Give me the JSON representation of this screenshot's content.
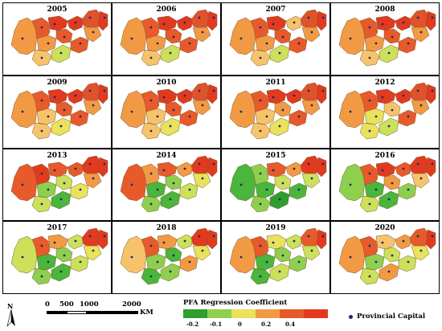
{
  "panels": [
    {
      "year": "2005",
      "scheme": [
        "#f29a43",
        "#e85a2a",
        "#e23a1e",
        "#f29a43",
        "#e85a2a",
        "#e23a1e",
        "#e0522a",
        "#f6c36a",
        "#cce05a",
        "#e85a2a",
        "#e23a1e",
        "#f29a43"
      ]
    },
    {
      "year": "2006",
      "scheme": [
        "#f29a43",
        "#e85a2a",
        "#e23a1e",
        "#f29a43",
        "#e85a2a",
        "#e23a1e",
        "#e0522a",
        "#f6c36a",
        "#cce05a",
        "#e85a2a",
        "#e23a1e",
        "#f29a43"
      ]
    },
    {
      "year": "2007",
      "scheme": [
        "#f29a43",
        "#e85a2a",
        "#e23a1e",
        "#f29a43",
        "#e85a2a",
        "#f6c36a",
        "#e0522a",
        "#f6c36a",
        "#cce05a",
        "#e85a2a",
        "#e23a1e",
        "#f29a43"
      ]
    },
    {
      "year": "2008",
      "scheme": [
        "#f29a43",
        "#e85a2a",
        "#e23a1e",
        "#f29a43",
        "#e85a2a",
        "#e23a1e",
        "#e0522a",
        "#f6c36a",
        "#cce05a",
        "#e85a2a",
        "#e23a1e",
        "#f29a43"
      ]
    },
    {
      "year": "2009",
      "scheme": [
        "#f29a43",
        "#e85a2a",
        "#e23a1e",
        "#f6c36a",
        "#e85a2a",
        "#e23a1e",
        "#e0522a",
        "#f6c36a",
        "#e9e25a",
        "#e85a2a",
        "#e23a1e",
        "#f29a43"
      ]
    },
    {
      "year": "2010",
      "scheme": [
        "#f29a43",
        "#e85a2a",
        "#e23a1e",
        "#f6c36a",
        "#e85a2a",
        "#e23a1e",
        "#e0522a",
        "#f6c36a",
        "#e9e25a",
        "#e85a2a",
        "#e23a1e",
        "#f29a43"
      ]
    },
    {
      "year": "2011",
      "scheme": [
        "#f29a43",
        "#e85a2a",
        "#e23a1e",
        "#f6c36a",
        "#f29a43",
        "#e23a1e",
        "#e0522a",
        "#f6c36a",
        "#e9e25a",
        "#e85a2a",
        "#e23a1e",
        "#f29a43"
      ]
    },
    {
      "year": "2012",
      "scheme": [
        "#f29a43",
        "#e85a2a",
        "#e23a1e",
        "#e9e25a",
        "#f6c36a",
        "#e23a1e",
        "#e0522a",
        "#e9e25a",
        "#cce05a",
        "#e85a2a",
        "#e23a1e",
        "#f29a43"
      ]
    },
    {
      "year": "2013",
      "scheme": [
        "#e85a2a",
        "#e23a1e",
        "#e85a2a",
        "#8fcf4e",
        "#cce05a",
        "#e85a2a",
        "#e23a1e",
        "#cce05a",
        "#4ab63b",
        "#e9e25a",
        "#e23a1e",
        "#f29a43"
      ]
    },
    {
      "year": "2014",
      "scheme": [
        "#e85a2a",
        "#f29a43",
        "#e85a2a",
        "#4ab63b",
        "#8fcf4e",
        "#f29a43",
        "#e23a1e",
        "#8fcf4e",
        "#4ab63b",
        "#cce05a",
        "#e23a1e",
        "#e9e25a"
      ]
    },
    {
      "year": "2015",
      "scheme": [
        "#4ab63b",
        "#8fcf4e",
        "#e85a2a",
        "#4ab63b",
        "#cce05a",
        "#f29a43",
        "#e23a1e",
        "#8fcf4e",
        "#2f9e2f",
        "#4ab63b",
        "#e23a1e",
        "#cce05a"
      ]
    },
    {
      "year": "2016",
      "scheme": [
        "#8fcf4e",
        "#e85a2a",
        "#e23a1e",
        "#4ab63b",
        "#f29a43",
        "#e85a2a",
        "#e23a1e",
        "#cce05a",
        "#4ab63b",
        "#8fcf4e",
        "#e23a1e",
        "#f6c36a"
      ]
    },
    {
      "year": "2017",
      "scheme": [
        "#cce05a",
        "#e85a2a",
        "#f29a43",
        "#4ab63b",
        "#8fcf4e",
        "#cce05a",
        "#e23a1e",
        "#8fcf4e",
        "#4ab63b",
        "#cce05a",
        "#e23a1e",
        "#e9e25a"
      ]
    },
    {
      "year": "2018",
      "scheme": [
        "#f6c36a",
        "#e85a2a",
        "#f29a43",
        "#8fcf4e",
        "#4ab63b",
        "#cce05a",
        "#e23a1e",
        "#4ab63b",
        "#8fcf4e",
        "#f29a43",
        "#e23a1e",
        "#e9e25a"
      ]
    },
    {
      "year": "2019",
      "scheme": [
        "#f29a43",
        "#e85a2a",
        "#e9e25a",
        "#4ab63b",
        "#8fcf4e",
        "#cce05a",
        "#e85a2a",
        "#4ab63b",
        "#cce05a",
        "#8fcf4e",
        "#e23a1e",
        "#cce05a"
      ]
    },
    {
      "year": "2020",
      "scheme": [
        "#f29a43",
        "#e85a2a",
        "#f6c36a",
        "#8fcf4e",
        "#cce05a",
        "#f29a43",
        "#e85a2a",
        "#cce05a",
        "#f29a43",
        "#cce05a",
        "#e23a1e",
        "#e9e25a"
      ]
    }
  ],
  "north_arrow": {
    "label": "N"
  },
  "scale_bar": {
    "ticks": [
      "0",
      "500",
      "1000",
      "2000"
    ],
    "unit": "KM"
  },
  "legend": {
    "title": "PFA Regression Coefficient",
    "colors": [
      "#2f9e2f",
      "#8fcf4e",
      "#e9e25a",
      "#f29a43",
      "#e85a2a",
      "#e23a1e"
    ],
    "ticks": [
      "-0.2",
      "-0.1",
      "0",
      "0.2",
      "0.4"
    ]
  },
  "capital_legend": {
    "label": "Provincial Capital",
    "color": "#1b2a6b"
  }
}
